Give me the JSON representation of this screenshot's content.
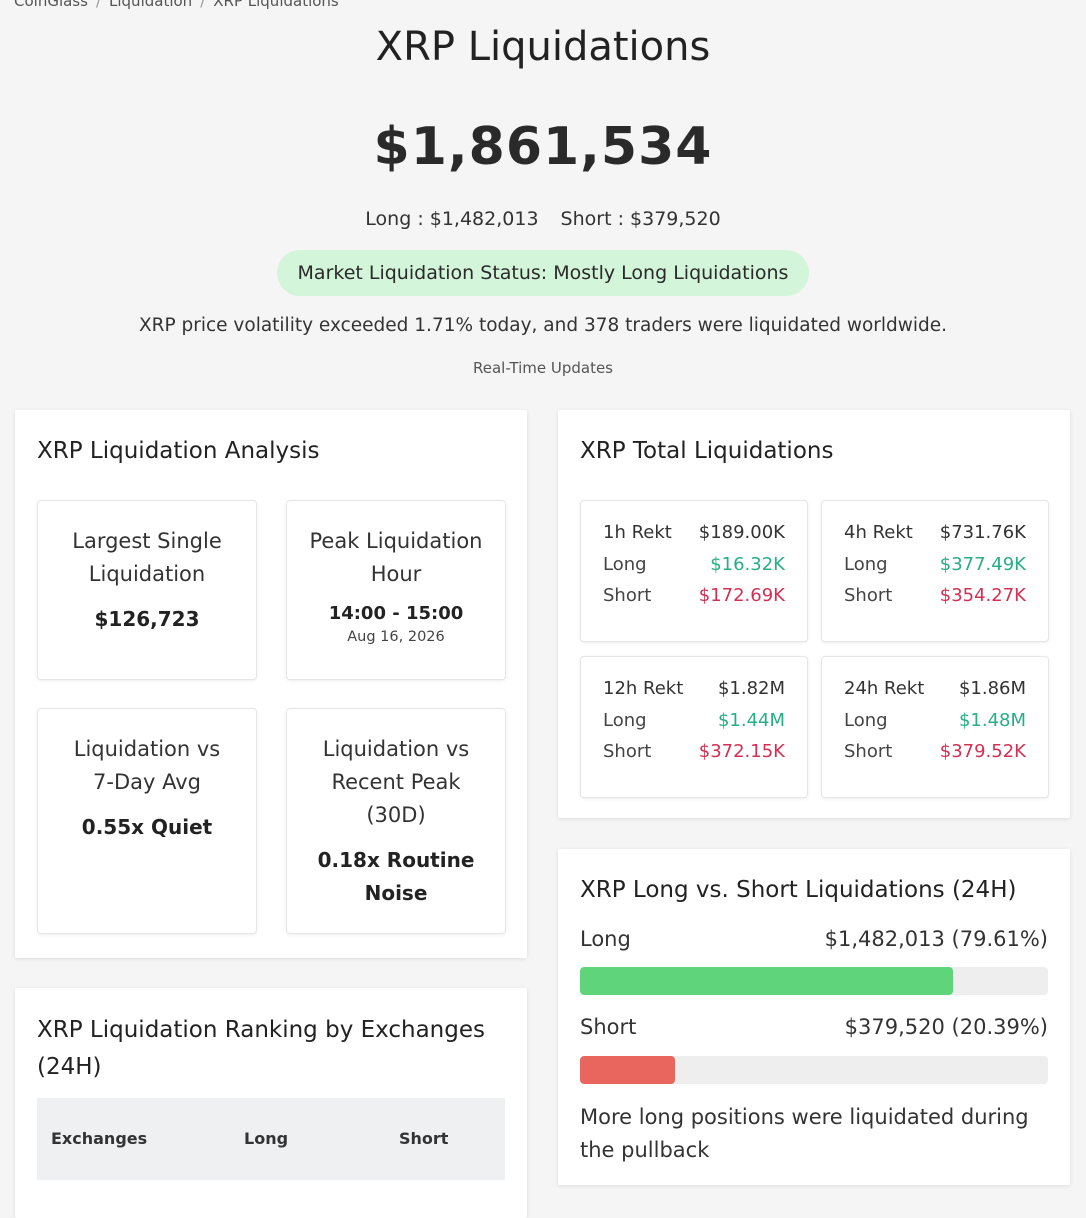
{
  "breadcrumb": [
    "CoinGlass",
    "Liquidation",
    "XRP Liquidations"
  ],
  "header": {
    "title": "XRP Liquidations",
    "total": "$1,861,534",
    "long_text": "Long : $1,482,013",
    "short_text": "Short : $379,520",
    "status": "Market Liquidation Status: Mostly Long Liquidations",
    "description": "XRP price volatility exceeded 1.71% today, and 378 traders were liquidated worldwide.",
    "realtime": "Real-Time Updates"
  },
  "analysis": {
    "title": "XRP Liquidation Analysis",
    "largest_label": "Largest Single Liquidation",
    "largest_value": "$126,723",
    "peak_label": "Peak Liquidation Hour",
    "peak_value": "14:00 - 15:00",
    "peak_date": "Aug 16, 2026",
    "avg_label": "Liquidation vs 7-Day Avg",
    "avg_value": "0.55x Quiet",
    "recent_label": "Liquidation vs Recent Peak (30D)",
    "recent_value": "0.18x Routine Noise"
  },
  "totals": {
    "title": "XRP Total Liquidations",
    "long_label": "Long",
    "short_label": "Short",
    "cards": [
      {
        "label": "1h Rekt",
        "total": "$189.00K",
        "long": "$16.32K",
        "short": "$172.69K"
      },
      {
        "label": "4h Rekt",
        "total": "$731.76K",
        "long": "$377.49K",
        "short": "$354.27K"
      },
      {
        "label": "12h Rekt",
        "total": "$1.82M",
        "long": "$1.44M",
        "short": "$372.15K"
      },
      {
        "label": "24h Rekt",
        "total": "$1.86M",
        "long": "$1.48M",
        "short": "$379.52K"
      }
    ]
  },
  "long_short": {
    "title": "XRP Long vs. Short Liquidations (24H)",
    "long_label": "Long",
    "long_value": "$1,482,013 (79.61%)",
    "long_pct": 79.61,
    "short_label": "Short",
    "short_value": "$379,520 (20.39%)",
    "short_pct": 20.39,
    "summary": "More long positions were liquidated during the pullback",
    "colors": {
      "long": "#5fd47a",
      "short": "#e8665e"
    }
  },
  "ranking": {
    "title": "XRP Liquidation Ranking by Exchanges (24H)",
    "columns": [
      "Exchanges",
      "Long",
      "Short"
    ]
  }
}
